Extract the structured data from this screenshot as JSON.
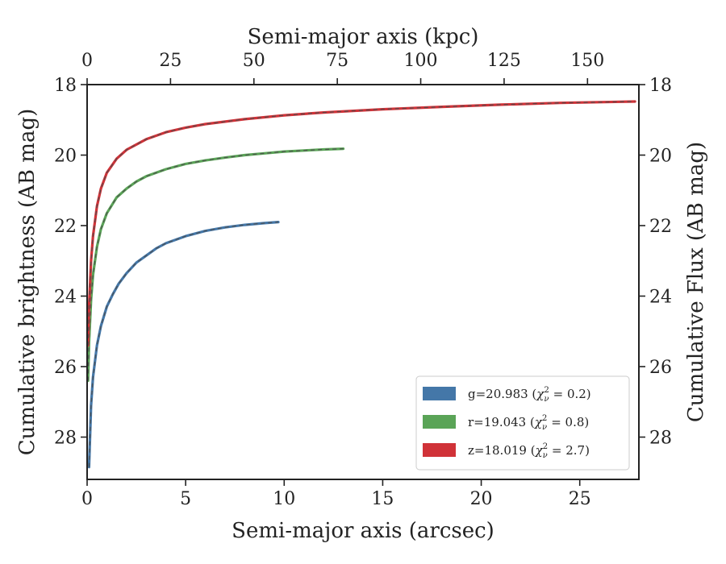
{
  "chart_data": {
    "type": "line",
    "xlabel": "Semi-major axis (arcsec)",
    "ylabel": "Cumulative brightness (AB mag)",
    "x2label": "Semi-major axis (kpc)",
    "y2label": "Cumulative Flux (AB mag)",
    "xlim": [
      0,
      28
    ],
    "ylim": [
      29.2,
      18
    ],
    "y_inverted": true,
    "x2lim": [
      0,
      165.4
    ],
    "xticks": [
      0,
      5,
      10,
      15,
      20,
      25
    ],
    "xtick_labels": [
      "0",
      "5",
      "10",
      "15",
      "20",
      "25"
    ],
    "x2ticks": [
      0,
      25,
      50,
      75,
      100,
      125,
      150
    ],
    "x2tick_labels": [
      "0",
      "25",
      "50",
      "75",
      "100",
      "125",
      "150"
    ],
    "yticks": [
      18,
      20,
      22,
      24,
      26,
      28
    ],
    "ytick_labels": [
      "18",
      "20",
      "22",
      "24",
      "26",
      "28"
    ],
    "y2tick_labels": [
      "18",
      "20",
      "22",
      "24",
      "26",
      "28"
    ],
    "grid": false,
    "legend_position": "lower-right",
    "series": [
      {
        "name": "g=20.983",
        "chi2": "0.2",
        "color": "#4477a8",
        "x": [
          0.1,
          0.2,
          0.3,
          0.5,
          0.7,
          1.0,
          1.3,
          1.6,
          2.0,
          2.5,
          3.0,
          3.5,
          4.0,
          4.5,
          5.0,
          6.0,
          7.0,
          8.0,
          9.0,
          9.7
        ],
        "y": [
          28.85,
          27.1,
          26.3,
          25.4,
          24.85,
          24.3,
          23.95,
          23.65,
          23.35,
          23.05,
          22.85,
          22.65,
          22.5,
          22.4,
          22.3,
          22.15,
          22.05,
          21.98,
          21.93,
          21.9
        ]
      },
      {
        "name": "r=19.043",
        "chi2": "0.8",
        "color": "#5aa457",
        "x": [
          0.05,
          0.1,
          0.2,
          0.3,
          0.5,
          0.7,
          1.0,
          1.5,
          2.0,
          2.5,
          3.0,
          4.0,
          5.0,
          6.0,
          7.0,
          8.0,
          9.0,
          10.0,
          11.0,
          12.0,
          13.0
        ],
        "y": [
          26.4,
          25.3,
          24.1,
          23.4,
          22.6,
          22.1,
          21.65,
          21.2,
          20.95,
          20.75,
          20.6,
          20.4,
          20.25,
          20.15,
          20.07,
          20.0,
          19.95,
          19.9,
          19.87,
          19.84,
          19.82
        ]
      },
      {
        "name": "z=18.019",
        "chi2": "2.7",
        "color": "#d03238",
        "x": [
          0.05,
          0.1,
          0.2,
          0.3,
          0.5,
          0.7,
          1.0,
          1.5,
          2.0,
          3.0,
          4.0,
          5.0,
          6.0,
          8.0,
          10.0,
          12.0,
          15.0,
          18.0,
          21.0,
          24.0,
          27.8
        ],
        "y": [
          25.4,
          24.3,
          23.0,
          22.3,
          21.45,
          20.95,
          20.5,
          20.1,
          19.85,
          19.55,
          19.35,
          19.22,
          19.12,
          18.98,
          18.87,
          18.79,
          18.7,
          18.63,
          18.57,
          18.52,
          18.48
        ]
      }
    ]
  }
}
